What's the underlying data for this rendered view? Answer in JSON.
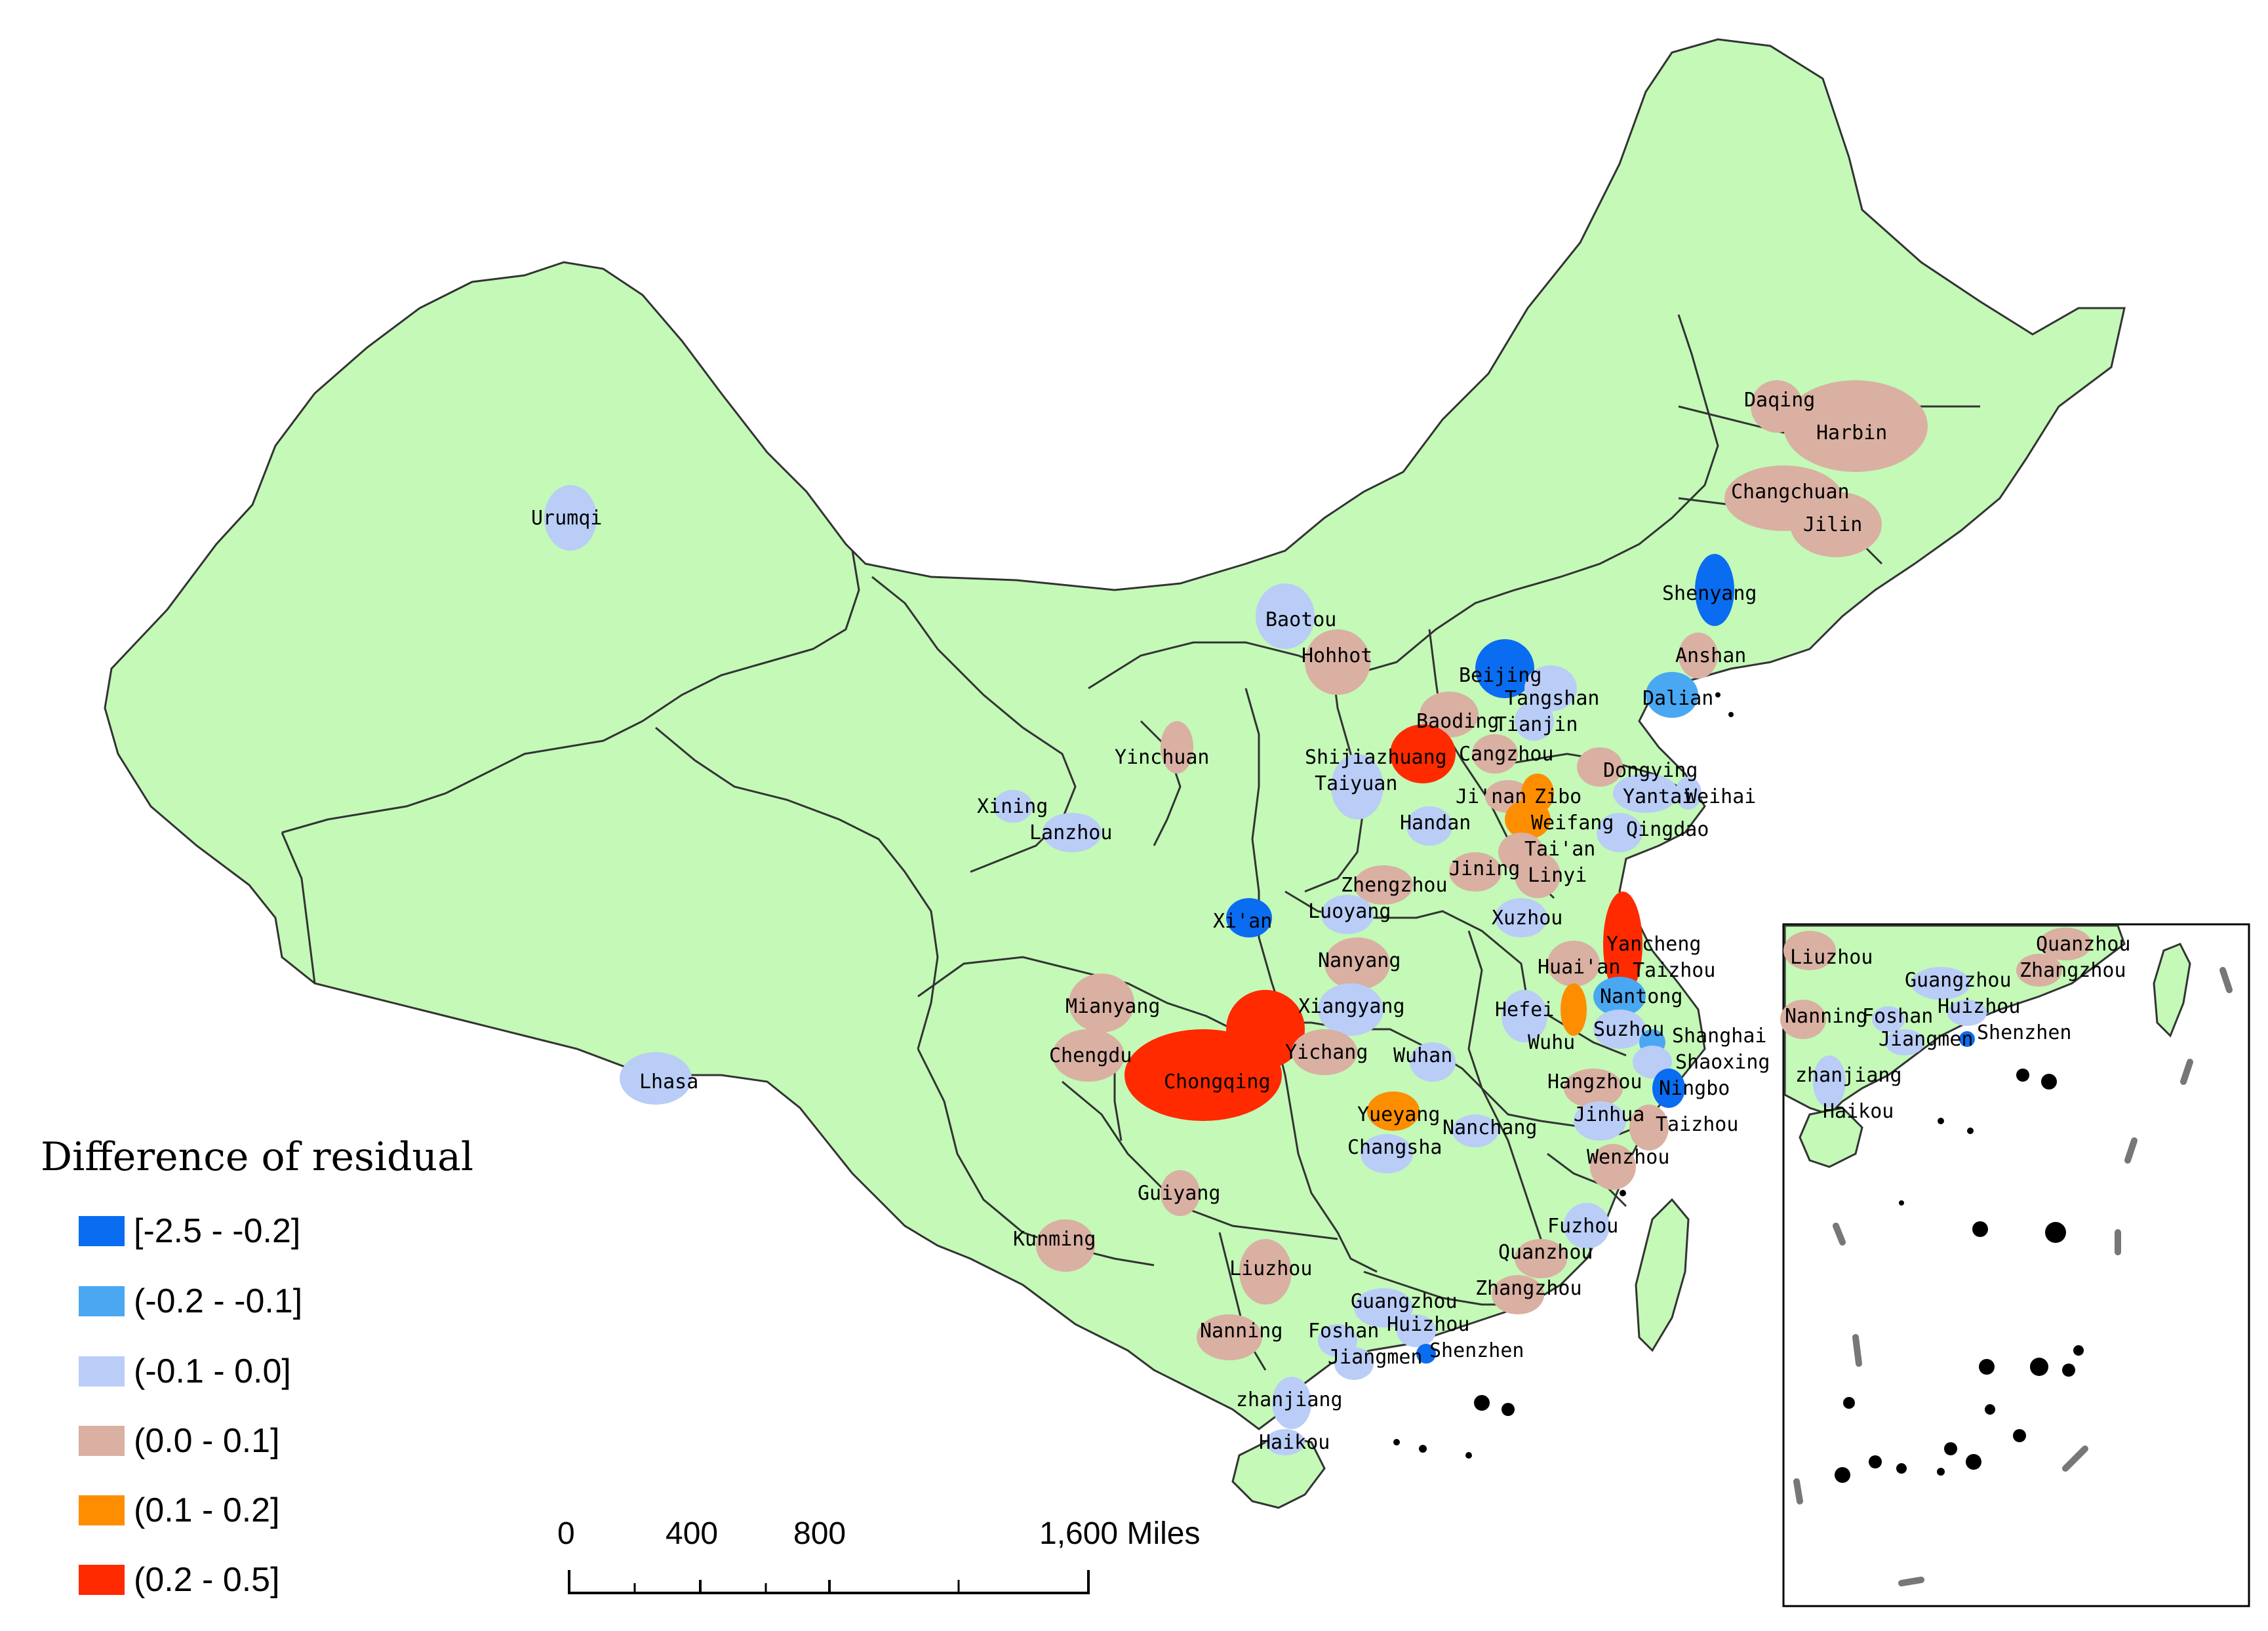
{
  "legend": {
    "title": "Difference of residual",
    "classes": [
      {
        "label": "[-2.5 - -0.2]",
        "color": "#0a6cf0"
      },
      {
        "label": "(-0.2 - -0.1]",
        "color": "#4aa8f2"
      },
      {
        "label": "(-0.1 - 0.0]",
        "color": "#b9cdf7"
      },
      {
        "label": "(0.0 - 0.1]",
        "color": "#d9b0a2"
      },
      {
        "label": "(0.1 - 0.2]",
        "color": "#ff8d00"
      },
      {
        "label": "(0.2 - 0.5]",
        "color": "#ff2a00"
      }
    ]
  },
  "colors": {
    "land": "#c4f9b8",
    "border": "#333333",
    "island": "#000000"
  },
  "scale_bar": {
    "ticks": [
      "0",
      "400",
      "800",
      "1,600 Miles"
    ]
  },
  "cities": {
    "urumqi": "Urumqi",
    "lhasa": "Lhasa",
    "xining": "Xining",
    "lanzhou": "Lanzhou",
    "yinchuan": "Yinchuan",
    "baotou": "Baotou",
    "hohhot": "Hohhot",
    "daqing": "Daqing",
    "harbin": "Harbin",
    "changchuan": "Changchuan",
    "jilin": "Jilin",
    "shenyang": "Shenyang",
    "anshan": "Anshan",
    "dalian": "Dalian",
    "beijing": "Beijing",
    "tangshan": "Tangshan",
    "tianjin": "Tianjin",
    "baoding": "Baoding",
    "cangzhou": "Cangzhou",
    "shijiazhuang": "Shijiazhuang",
    "taiyuan": "Taiyuan",
    "handan": "Handan",
    "jinan": "Ji'nan",
    "zibo": "Zibo",
    "dongying": "Dongying",
    "yantai": "Yantai",
    "weihai": "Weihai",
    "weifang": "Weifang",
    "qingdao": "Qingdao",
    "taian": "Tai'an",
    "jining": "Jining",
    "linyi": "Linyi",
    "xuzhou": "Xuzhou",
    "xian": "Xi'an",
    "zhengzhou": "Zhengzhou",
    "luoyang": "Luoyang",
    "nanyang": "Nanyang",
    "yancheng": "Yancheng",
    "huaian": "Huai'an",
    "taizhou_js": "Taizhou",
    "nantong": "Nantong",
    "hefei": "Hefei",
    "wuhu": "Wuhu",
    "suzhou": "Suzhou",
    "shanghai": "Shanghai",
    "shaoxing": "Shaoxing",
    "ningbo": "Ningbo",
    "hangzhou": "Hangzhou",
    "jinhua": "Jinhua",
    "taizhou_zj": "Taizhou",
    "wenzhou": "Wenzhou",
    "mianyang": "Mianyang",
    "chengdu": "Chengdu",
    "chongqing": "Chongqing",
    "xiangyang": "Xiangyang",
    "yichang": "Yichang",
    "wuhan": "Wuhan",
    "yueyang": "Yueyang",
    "changsha": "Changsha",
    "nanchang": "Nanchang",
    "guiyang": "Guiyang",
    "kunming": "Kunming",
    "liuzhou": "Liuzhou",
    "nanning": "Nanning",
    "fuzhou": "Fuzhou",
    "quanzhou": "Quanzhou",
    "zhangzhou": "Zhangzhou",
    "guangzhou": "Guangzhou",
    "foshan": "Foshan",
    "huizhou": "Huizhou",
    "jiangmen": "Jiangmen",
    "shenzhen": "Shenzhen",
    "zhanjiang": "zhanjiang",
    "haikou": "Haikou"
  },
  "inset": {
    "cities": {
      "liuzhou": "Liuzhou",
      "quanzhou": "Quanzhou",
      "zhangzhou": "Zhangzhou",
      "guangzhou": "Guangzhou",
      "nanning": "Nanning",
      "foshan": "Foshan",
      "huizhou": "Huizhou",
      "jiangmen": "Jiangmen",
      "shenzhen": "Shenzhen",
      "zhanjiang": "zhanjiang",
      "haikou": "Haikou"
    }
  }
}
